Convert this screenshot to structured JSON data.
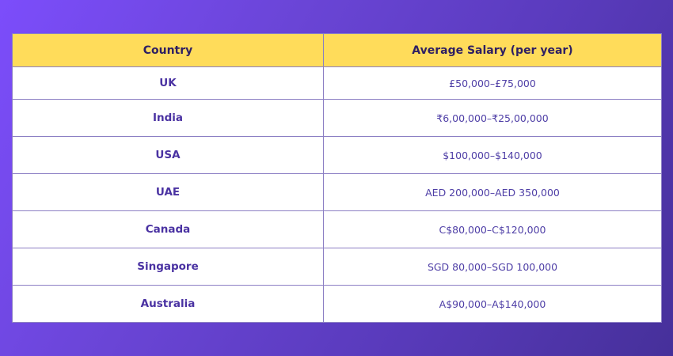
{
  "table": {
    "headers": [
      "Country",
      "Average Salary (per year)"
    ],
    "rows": [
      {
        "country": "UK",
        "salary": "£50,000–£75,000"
      },
      {
        "country": "India",
        "salary": "₹6,00,000–₹25,00,000"
      },
      {
        "country": "USA",
        "salary": "$100,000–$140,000"
      },
      {
        "country": "UAE",
        "salary": "AED 200,000–AED 350,000"
      },
      {
        "country": "Canada",
        "salary": "C$80,000–C$120,000"
      },
      {
        "country": "Singapore",
        "salary": "SGD 80,000–SGD 100,000"
      },
      {
        "country": "Australia",
        "salary": "A$90,000–A$140,000"
      }
    ]
  },
  "colors": {
    "header_bg": "#ffdc5a",
    "header_text": "#2e1f63",
    "cell_text": "#4b36a0",
    "border": "#8c7fc4",
    "background_start": "#7c4dfb",
    "background_end": "#46309a"
  }
}
